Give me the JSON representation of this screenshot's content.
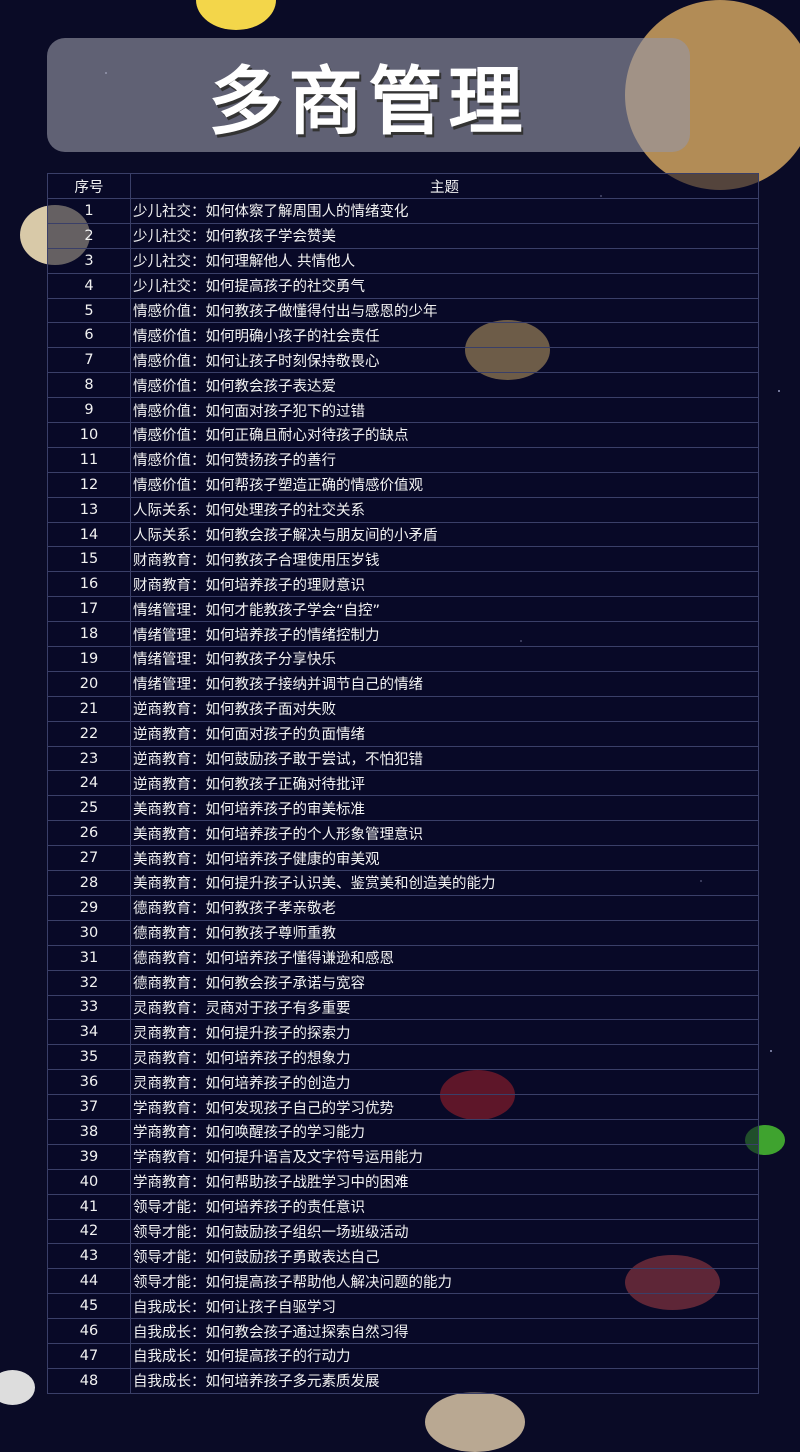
{
  "title": "多商管理",
  "table": {
    "headers": [
      "序号",
      "主题"
    ],
    "rows": [
      [
        "1",
        "少儿社交：如何体察了解周围人的情绪变化"
      ],
      [
        "2",
        "少儿社交：如何教孩子学会赞美"
      ],
      [
        "3",
        "少儿社交：如何理解他人 共情他人"
      ],
      [
        "4",
        "少儿社交：如何提高孩子的社交勇气"
      ],
      [
        "5",
        "情感价值：如何教孩子做懂得付出与感恩的少年"
      ],
      [
        "6",
        "情感价值：如何明确小孩子的社会责任"
      ],
      [
        "7",
        "情感价值：如何让孩子时刻保持敬畏心"
      ],
      [
        "8",
        "情感价值：如何教会孩子表达爱"
      ],
      [
        "9",
        "情感价值：如何面对孩子犯下的过错"
      ],
      [
        "10",
        "情感价值：如何正确且耐心对待孩子的缺点"
      ],
      [
        "11",
        "情感价值：如何赞扬孩子的善行"
      ],
      [
        "12",
        "情感价值：如何帮孩子塑造正确的情感价值观"
      ],
      [
        "13",
        "人际关系：如何处理孩子的社交关系"
      ],
      [
        "14",
        "人际关系：如何教会孩子解决与朋友间的小矛盾"
      ],
      [
        "15",
        "财商教育：如何教孩子合理使用压岁钱"
      ],
      [
        "16",
        "财商教育：如何培养孩子的理财意识"
      ],
      [
        "17",
        "情绪管理：如何才能教孩子学会“自控”"
      ],
      [
        "18",
        "情绪管理：如何培养孩子的情绪控制力"
      ],
      [
        "19",
        "情绪管理：如何教孩子分享快乐"
      ],
      [
        "20",
        "情绪管理：如何教孩子接纳并调节自己的情绪"
      ],
      [
        "21",
        "逆商教育：如何教孩子面对失败"
      ],
      [
        "22",
        "逆商教育：如何面对孩子的负面情绪"
      ],
      [
        "23",
        "逆商教育：如何鼓励孩子敢于尝试，不怕犯错"
      ],
      [
        "24",
        "逆商教育：如何教孩子正确对待批评"
      ],
      [
        "25",
        "美商教育：如何培养孩子的审美标准"
      ],
      [
        "26",
        "美商教育：如何培养孩子的个人形象管理意识"
      ],
      [
        "27",
        "美商教育：如何培养孩子健康的审美观"
      ],
      [
        "28",
        "美商教育：如何提升孩子认识美、鉴赏美和创造美的能力"
      ],
      [
        "29",
        "德商教育：如何教孩子孝亲敬老"
      ],
      [
        "30",
        "德商教育：如何教孩子尊师重教"
      ],
      [
        "31",
        "德商教育：如何培养孩子懂得谦逊和感恩"
      ],
      [
        "32",
        "德商教育：如何教会孩子承诺与宽容"
      ],
      [
        "33",
        "灵商教育：灵商对于孩子有多重要"
      ],
      [
        "34",
        "灵商教育：如何提升孩子的探索力"
      ],
      [
        "35",
        "灵商教育：如何培养孩子的想象力"
      ],
      [
        "36",
        "灵商教育：如何培养孩子的创造力"
      ],
      [
        "37",
        "学商教育：如何发现孩子自己的学习优势"
      ],
      [
        "38",
        "学商教育：如何唤醒孩子的学习能力"
      ],
      [
        "39",
        "学商教育：如何提升语言及文字符号运用能力"
      ],
      [
        "40",
        "学商教育：如何帮助孩子战胜学习中的困难"
      ],
      [
        "41",
        "领导才能：如何培养孩子的责任意识"
      ],
      [
        "42",
        "领导才能：如何鼓励孩子组织一场班级活动"
      ],
      [
        "43",
        "领导才能：如何鼓励孩子勇敢表达自己"
      ],
      [
        "44",
        "领导才能：如何提高孩子帮助他人解决问题的能力"
      ],
      [
        "45",
        "自我成长：如何让孩子自驱学习"
      ],
      [
        "46",
        "自我成长：如何教会孩子通过探索自然习得"
      ],
      [
        "47",
        "自我成长：如何提高孩子的行动力"
      ],
      [
        "48",
        "自我成长：如何培养孩子多元素质发展"
      ]
    ]
  },
  "colors": {
    "background": "#0a0b26",
    "banner": "#9696a5",
    "grid": "#3a3f68"
  }
}
